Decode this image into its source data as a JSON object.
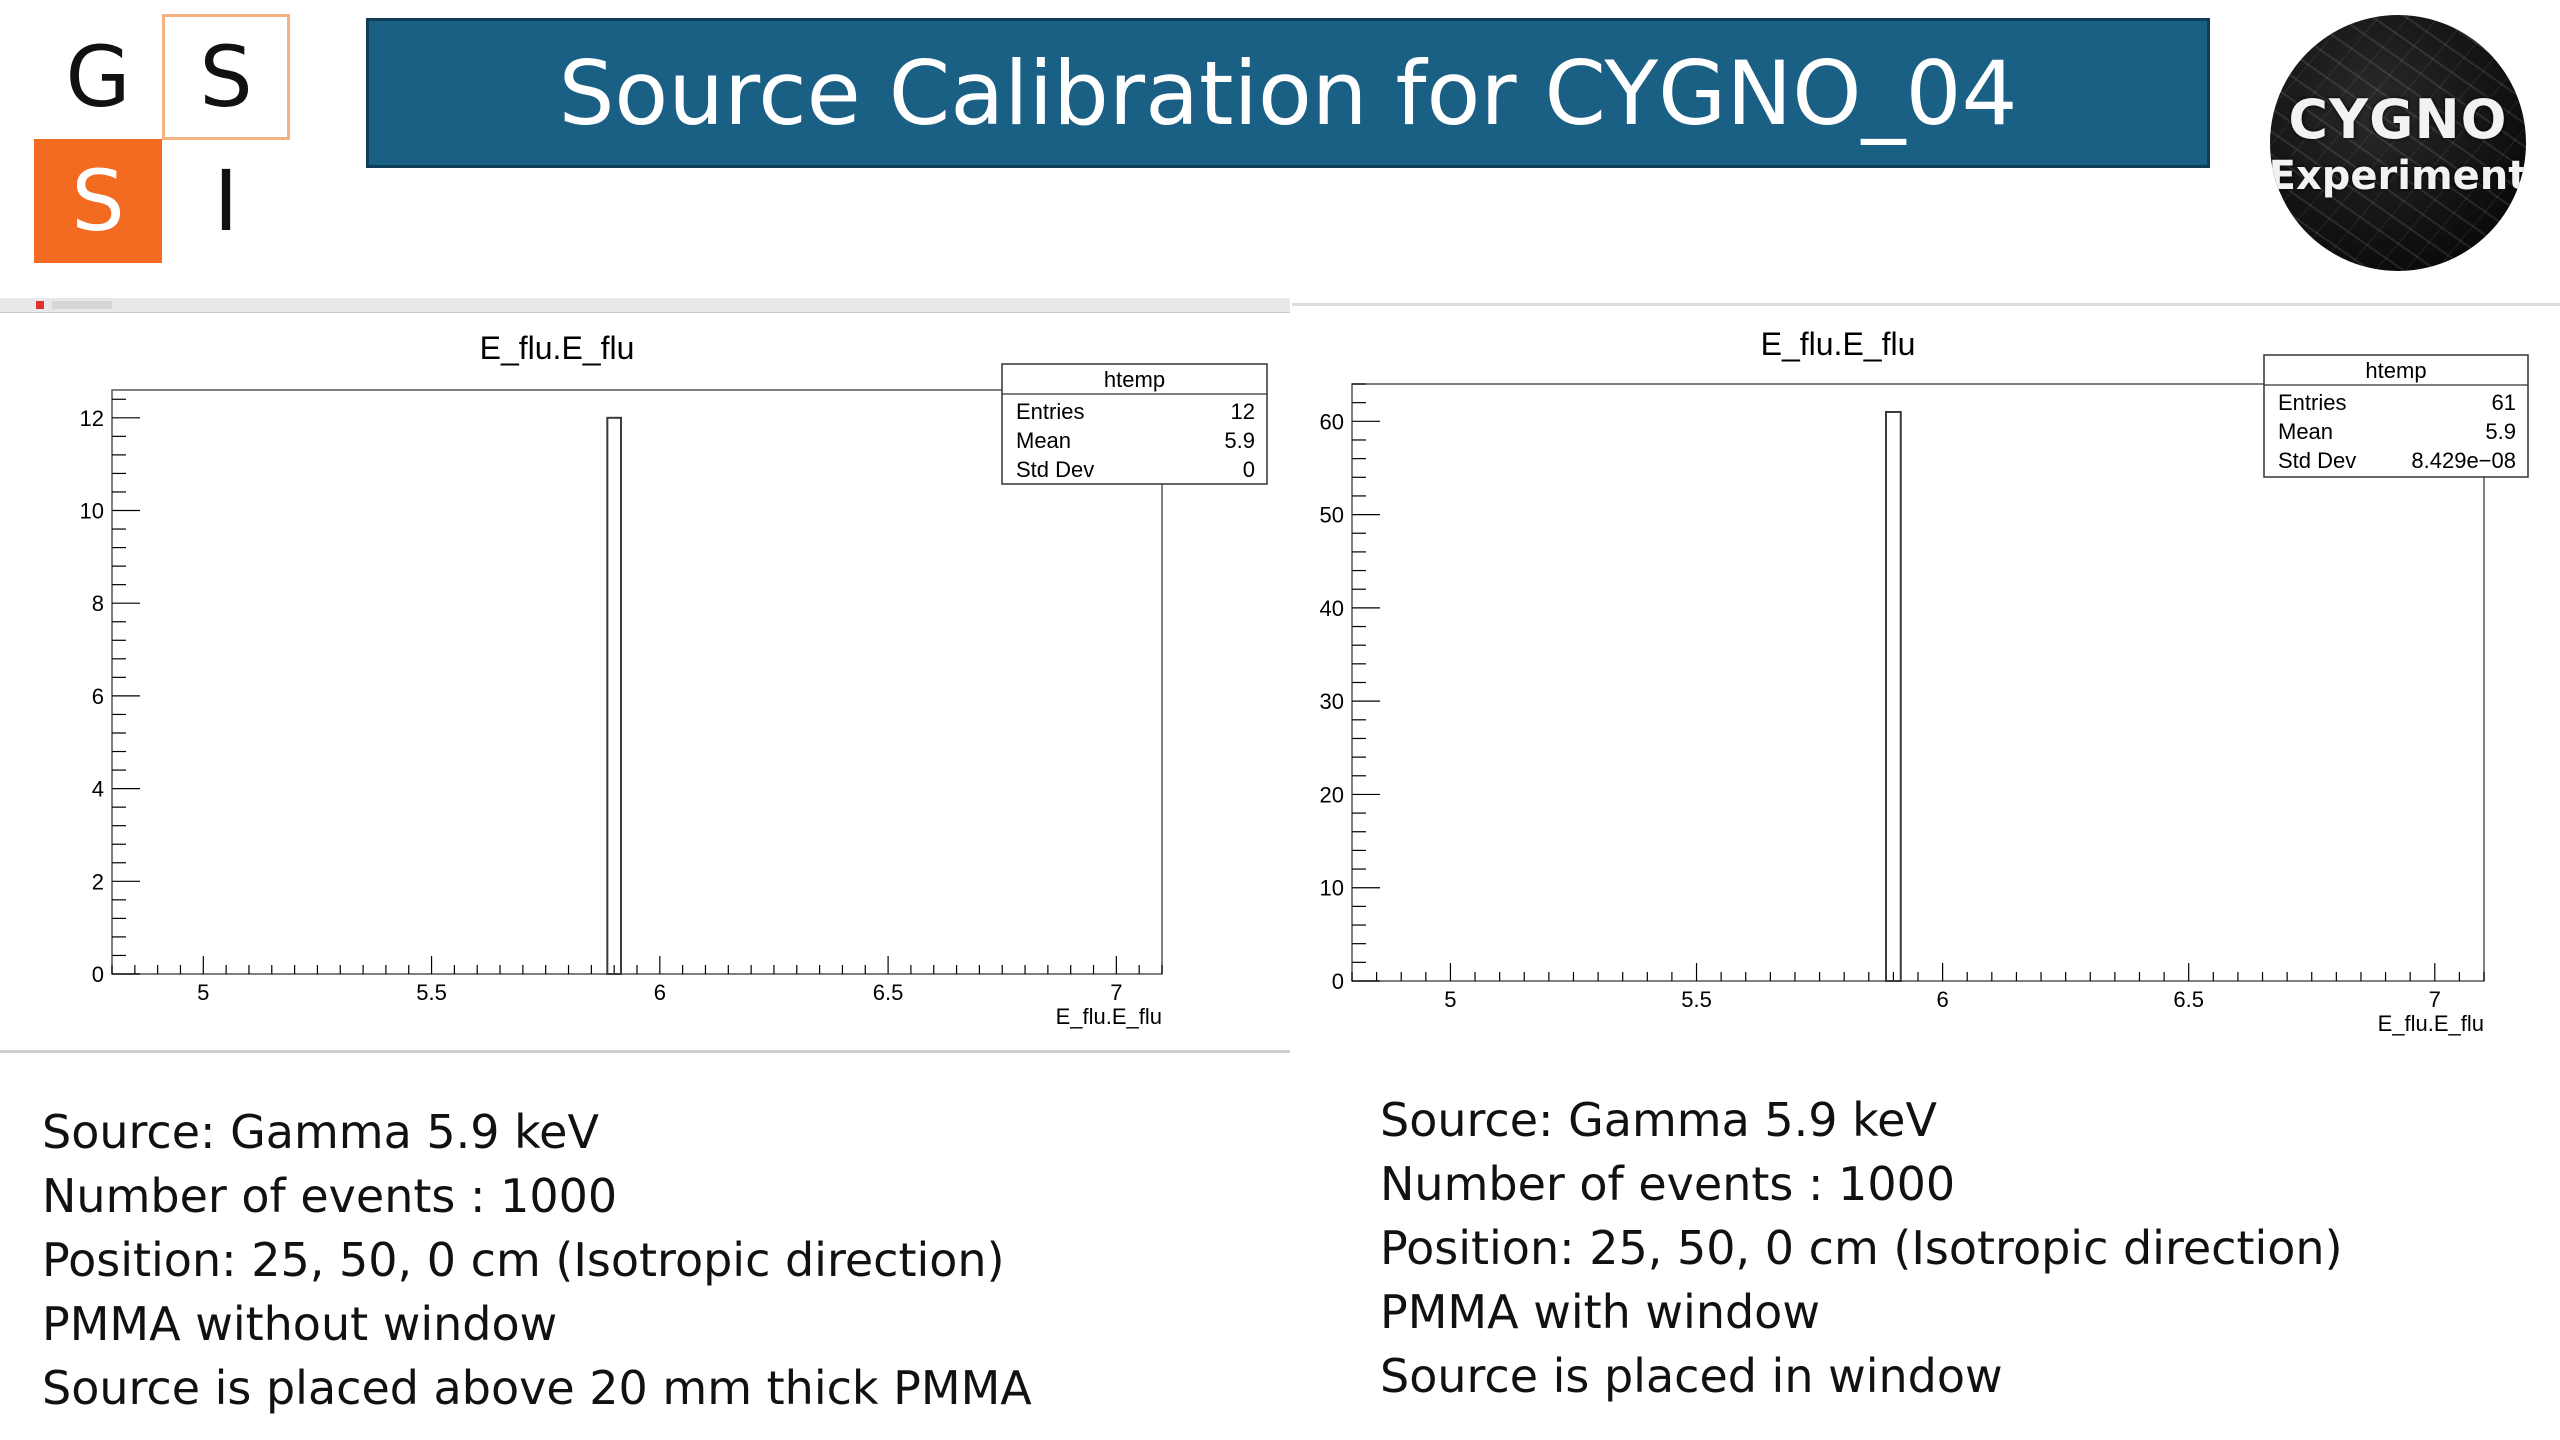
{
  "logo": {
    "letters": [
      "G",
      "S",
      "S",
      "I"
    ]
  },
  "title": "Source Calibration for CYGNO_04",
  "badge": {
    "line1": "CYGNO",
    "line2": "Experiment"
  },
  "plots": [
    {
      "title": "E_flu.E_flu",
      "stats": {
        "name": "htemp",
        "rows": [
          {
            "label": "Entries",
            "value": "12"
          },
          {
            "label": "Mean",
            "value": "5.9"
          },
          {
            "label": "Std Dev",
            "value": "0"
          }
        ]
      },
      "xlabel": "E_flu.E_flu",
      "chart_data": {
        "type": "bar",
        "x_range": [
          4.8,
          7.1
        ],
        "y_range": [
          0,
          12.6
        ],
        "x_ticks": [
          "5",
          "5.5",
          "6",
          "6.5",
          "7"
        ],
        "y_ticks": [
          "0",
          "2",
          "4",
          "6",
          "8",
          "10",
          "12"
        ],
        "bin": {
          "low": 5.885,
          "high": 5.915,
          "count": 12
        }
      }
    },
    {
      "title": "E_flu.E_flu",
      "stats": {
        "name": "htemp",
        "rows": [
          {
            "label": "Entries",
            "value": "61"
          },
          {
            "label": "Mean",
            "value": "5.9"
          },
          {
            "label": "Std Dev",
            "value": "8.429e−08"
          }
        ]
      },
      "xlabel": "E_flu.E_flu",
      "chart_data": {
        "type": "bar",
        "x_range": [
          4.8,
          7.1
        ],
        "y_range": [
          0,
          64
        ],
        "x_ticks": [
          "5",
          "5.5",
          "6",
          "6.5",
          "7"
        ],
        "y_ticks": [
          "0",
          "10",
          "20",
          "30",
          "40",
          "50",
          "60"
        ],
        "bin": {
          "low": 5.885,
          "high": 5.915,
          "count": 61
        }
      }
    }
  ],
  "left_notes": [
    "Source: Gamma 5.9 keV",
    "Number of events : 1000",
    "Position: 25, 50, 0 cm (Isotropic direction)",
    "PMMA without window",
    "Source is placed above 20 mm thick PMMA"
  ],
  "right_notes": [
    "Source: Gamma 5.9 keV",
    "Number of events : 1000",
    "Position: 25, 50, 0 cm (Isotropic direction)",
    "PMMA with window",
    "Source is placed in window"
  ]
}
